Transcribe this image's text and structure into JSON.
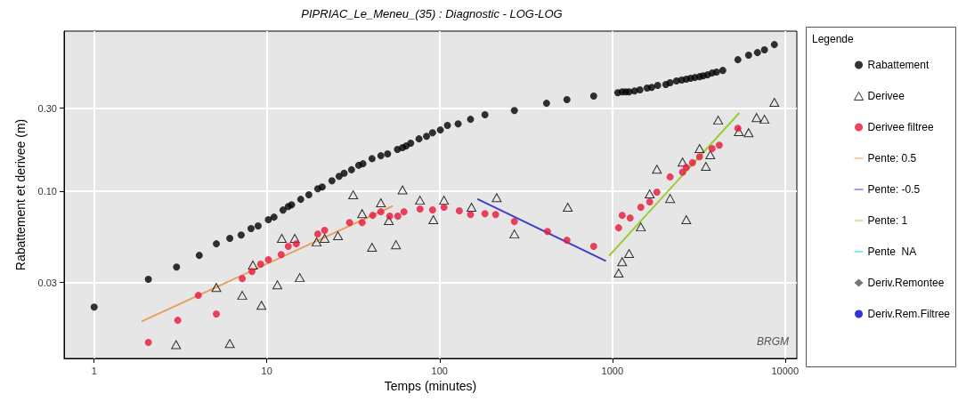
{
  "chart_data": {
    "type": "scatter",
    "title": "PIPRIAC_Le_Meneu_(35) : Diagnostic - LOG-LOG",
    "xlabel": "Temps (minutes)",
    "ylabel": "Rabattement et derivee (m)",
    "legend_title": "Legende",
    "log": "xy",
    "grid": true,
    "legend": "right",
    "xlim": [
      0.67,
      11700
    ],
    "xticks": [
      1,
      10,
      100,
      1000,
      10000
    ],
    "ylim": [
      0.011,
      0.83
    ],
    "yticks": [
      {
        "value": 0.03,
        "label": "0.03"
      },
      {
        "value": 0.1,
        "label": "0.10"
      },
      {
        "value": 0.3,
        "label": "0.30"
      }
    ],
    "annotations": [
      "BRGM"
    ],
    "series": [
      {
        "name": "Rabattement",
        "marker": "circle",
        "color": "#000000",
        "x": [
          1,
          2.06,
          3.0,
          4.06,
          5.1,
          6.1,
          7.1,
          8.1,
          8.9,
          10.2,
          11,
          12.4,
          13.3,
          13.9,
          15.7,
          17.5,
          19.7,
          20.9,
          23.8,
          26.2,
          28,
          30.9,
          34,
          36,
          40.6,
          45.7,
          50,
          57,
          61,
          64,
          68,
          76,
          84,
          91,
          101,
          111,
          128,
          151,
          183,
          271,
          416,
          546,
          780,
          1075,
          1140,
          1195,
          1250,
          1345,
          1445,
          1590,
          1690,
          1830,
          2040,
          2160,
          2350,
          2520,
          2680,
          2840,
          3010,
          3200,
          3360,
          3560,
          3780,
          4010,
          4360,
          5330,
          6150,
          6920,
          7600,
          8670
        ],
        "values": [
          0.0217,
          0.0313,
          0.0368,
          0.0429,
          0.05,
          0.0537,
          0.0562,
          0.0611,
          0.0633,
          0.0687,
          0.0711,
          0.0781,
          0.0818,
          0.0838,
          0.09,
          0.0955,
          0.1035,
          0.106,
          0.115,
          0.122,
          0.127,
          0.133,
          0.141,
          0.144,
          0.154,
          0.16,
          0.164,
          0.174,
          0.178,
          0.182,
          0.189,
          0.2,
          0.207,
          0.217,
          0.225,
          0.239,
          0.244,
          0.259,
          0.275,
          0.291,
          0.32,
          0.336,
          0.352,
          0.368,
          0.372,
          0.372,
          0.372,
          0.377,
          0.382,
          0.391,
          0.395,
          0.405,
          0.41,
          0.42,
          0.43,
          0.435,
          0.44,
          0.445,
          0.45,
          0.455,
          0.46,
          0.466,
          0.477,
          0.483,
          0.494,
          0.569,
          0.604,
          0.625,
          0.648,
          0.695
        ]
      },
      {
        "name": "Derivee",
        "marker": "triangle",
        "color": "#000000",
        "x": [
          2.98,
          6.1,
          5.1,
          7.2,
          8.3,
          9.3,
          11.5,
          12.2,
          14.5,
          15.5,
          19.4,
          21.6,
          25.8,
          31.6,
          35.6,
          40.6,
          45.7,
          50.8,
          55.9,
          61,
          77,
          92,
          106,
          153,
          214,
          271,
          552,
          1087,
          1140,
          1250,
          1462,
          1645,
          1811,
          2160,
          2550,
          2680,
          3200,
          3480,
          3690,
          4100,
          5400,
          6150,
          6840,
          7600,
          8670
        ],
        "values": [
          0.0132,
          0.0134,
          0.0281,
          0.0253,
          0.0378,
          0.0222,
          0.0291,
          0.0537,
          0.0537,
          0.032,
          0.0512,
          0.0537,
          0.0556,
          0.0955,
          0.0745,
          0.0478,
          0.0859,
          0.0679,
          0.0494,
          0.102,
          0.0889,
          0.0687,
          0.0889,
          0.081,
          0.092,
          0.0569,
          0.081,
          0.034,
          0.0395,
          0.044,
          0.0625,
          0.0966,
          0.134,
          0.091,
          0.147,
          0.0687,
          0.176,
          0.139,
          0.162,
          0.256,
          0.22,
          0.217,
          0.265,
          0.259,
          0.324
        ]
      },
      {
        "name": "Derivee filtree",
        "marker": "circle",
        "color": "#e8173a",
        "x": [
          2.06,
          3.05,
          4.01,
          5.1,
          7.2,
          8.2,
          9.2,
          10.2,
          12.1,
          13.3,
          14.8,
          19.7,
          21.6,
          30.1,
          35.6,
          41,
          45.7,
          51.4,
          57.3,
          62.2,
          77,
          91,
          106,
          130,
          151,
          183,
          211,
          271,
          421,
          546,
          780,
          1087,
          1140,
          1268,
          1462,
          1645,
          1811,
          2160,
          2550,
          2680,
          2910,
          3200,
          3780,
          4160,
          5330
        ],
        "values": [
          0.0136,
          0.0182,
          0.0253,
          0.0198,
          0.0316,
          0.0347,
          0.0382,
          0.0405,
          0.0434,
          0.0483,
          0.05,
          0.0569,
          0.0597,
          0.0662,
          0.0662,
          0.0728,
          0.0763,
          0.072,
          0.072,
          0.0763,
          0.0791,
          0.0782,
          0.081,
          0.0773,
          0.0736,
          0.0745,
          0.0736,
          0.0671,
          0.0589,
          0.0524,
          0.0483,
          0.0618,
          0.0728,
          0.0703,
          0.081,
          0.0869,
          0.0989,
          0.121,
          0.129,
          0.137,
          0.146,
          0.158,
          0.176,
          0.184,
          0.23
        ]
      },
      {
        "name": "Pente: 0.5",
        "type": "line",
        "marker": "none",
        "color": "#e8a060",
        "x": [
          1.9,
          53
        ],
        "values": [
          0.018,
          0.082
        ]
      },
      {
        "name": "Pente: -0.5",
        "type": "line",
        "marker": "none",
        "color": "#4040c8",
        "x": [
          167,
          910
        ],
        "values": [
          0.09,
          0.04
        ]
      },
      {
        "name": "Pente: 1",
        "type": "line",
        "marker": "none",
        "color": "#9acd32",
        "x": [
          965,
          5400
        ],
        "values": [
          0.043,
          0.28
        ]
      },
      {
        "name": "Pente  NA",
        "type": "line",
        "marker": "none",
        "color": "#00e5ee"
      },
      {
        "name": "Deriv.Remontee",
        "marker": "diamond",
        "color": "#555555"
      },
      {
        "name": "Deriv.Rem.Filtree",
        "marker": "circle",
        "color": "#0000cc"
      }
    ]
  }
}
